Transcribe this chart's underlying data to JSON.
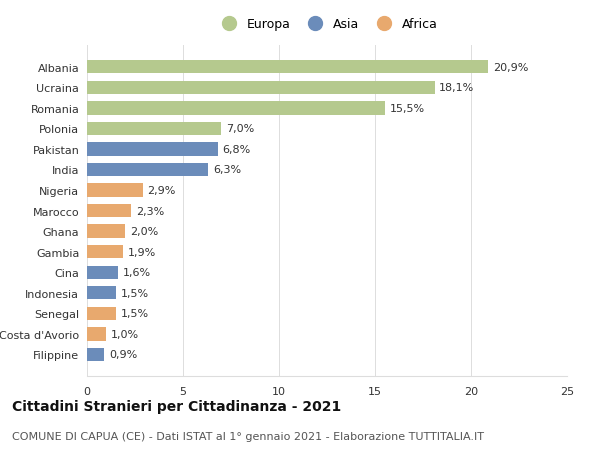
{
  "categories": [
    "Albania",
    "Ucraina",
    "Romania",
    "Polonia",
    "Pakistan",
    "India",
    "Nigeria",
    "Marocco",
    "Ghana",
    "Gambia",
    "Cina",
    "Indonesia",
    "Senegal",
    "Costa d'Avorio",
    "Filippine"
  ],
  "values": [
    20.9,
    18.1,
    15.5,
    7.0,
    6.8,
    6.3,
    2.9,
    2.3,
    2.0,
    1.9,
    1.6,
    1.5,
    1.5,
    1.0,
    0.9
  ],
  "labels": [
    "20,9%",
    "18,1%",
    "15,5%",
    "7,0%",
    "6,8%",
    "6,3%",
    "2,9%",
    "2,3%",
    "2,0%",
    "1,9%",
    "1,6%",
    "1,5%",
    "1,5%",
    "1,0%",
    "0,9%"
  ],
  "continent": [
    "Europa",
    "Europa",
    "Europa",
    "Europa",
    "Asia",
    "Asia",
    "Africa",
    "Africa",
    "Africa",
    "Africa",
    "Asia",
    "Asia",
    "Africa",
    "Africa",
    "Asia"
  ],
  "colors": {
    "Europa": "#b5c98e",
    "Asia": "#6b8cba",
    "Africa": "#e8a96e"
  },
  "xlim": [
    0,
    25
  ],
  "xticks": [
    0,
    5,
    10,
    15,
    20,
    25
  ],
  "title": "Cittadini Stranieri per Cittadinanza - 2021",
  "subtitle": "COMUNE DI CAPUA (CE) - Dati ISTAT al 1° gennaio 2021 - Elaborazione TUTTITALIA.IT",
  "background_color": "#ffffff",
  "bar_height": 0.65,
  "label_fontsize": 8,
  "title_fontsize": 10,
  "subtitle_fontsize": 8,
  "tick_fontsize": 8,
  "legend_fontsize": 9,
  "grid_color": "#dddddd",
  "text_color": "#333333"
}
